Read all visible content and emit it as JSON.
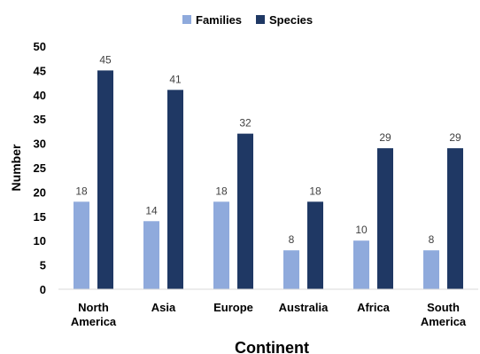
{
  "chart_data": {
    "type": "bar",
    "categories": [
      "North America",
      "Asia",
      "Europe",
      "Australia",
      "Africa",
      "South America"
    ],
    "category_lines": [
      [
        "North",
        "America"
      ],
      [
        "Asia"
      ],
      [
        "Europe"
      ],
      [
        "Australia"
      ],
      [
        "Africa"
      ],
      [
        "South",
        "America"
      ]
    ],
    "series": [
      {
        "name": "Families",
        "color": "#8faadc",
        "values": [
          18,
          14,
          18,
          8,
          10,
          8
        ]
      },
      {
        "name": "Species",
        "color": "#1f3864",
        "values": [
          45,
          41,
          32,
          18,
          29,
          29
        ]
      }
    ],
    "xlabel": "Continent",
    "ylabel": "Number",
    "ylim": [
      0,
      50
    ],
    "yticks": [
      0,
      5,
      10,
      15,
      20,
      25,
      30,
      35,
      40,
      45,
      50
    ],
    "grid": false,
    "legend_position": "top-center"
  }
}
